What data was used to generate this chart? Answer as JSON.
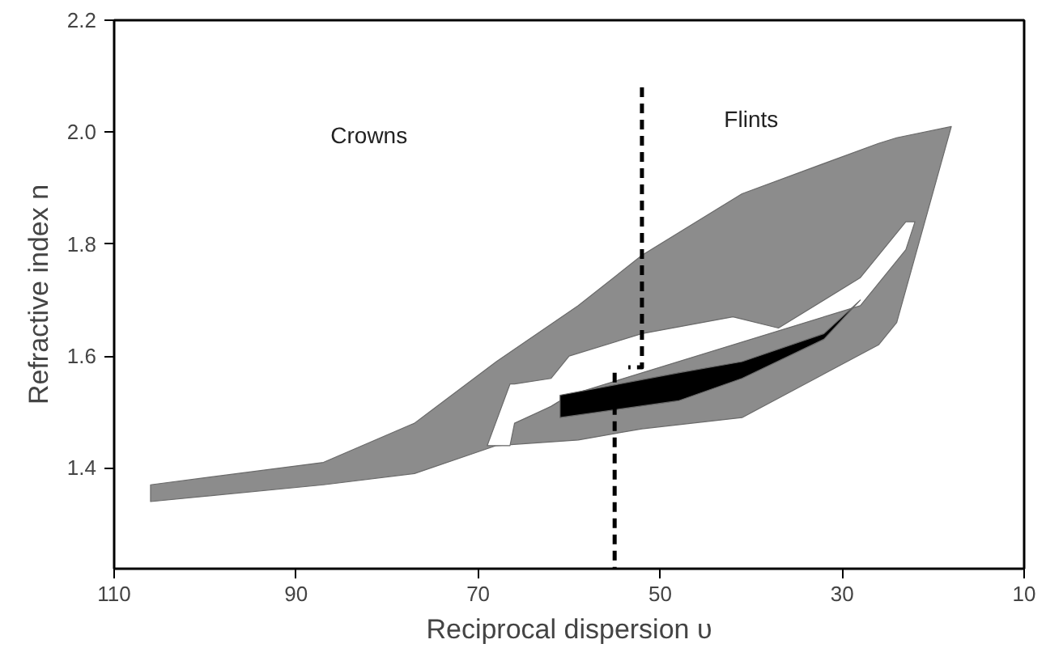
{
  "chart_data": {
    "type": "area",
    "xlabel": "Reciprocal dispersion υ",
    "ylabel": "Refractive index n",
    "xlim": [
      110,
      10
    ],
    "ylim": [
      1.22,
      2.2
    ],
    "xticks": [
      110,
      90,
      70,
      50,
      30,
      10
    ],
    "yticks": [
      1.4,
      1.6,
      1.8,
      {
        "value": 2.0,
        "label": "2.0"
      },
      2.2
    ],
    "grid": false,
    "annotations": [
      "Crowns",
      "Flints"
    ],
    "series": [
      {
        "color": "#8c8c8c",
        "x": [
          106,
          87,
          77,
          68,
          59,
          52,
          41,
          26,
          24,
          18,
          24,
          26,
          41,
          52,
          59,
          68,
          77,
          87,
          106
        ],
        "values": [
          1.37,
          1.41,
          1.48,
          1.59,
          1.69,
          1.78,
          1.89,
          1.98,
          1.99,
          2.01,
          1.66,
          1.62,
          1.49,
          1.47,
          1.45,
          1.44,
          1.39,
          1.37,
          1.34
        ]
      },
      {
        "color": "#ffffff",
        "x": [
          69,
          66.5,
          66,
          62,
          60,
          52,
          42,
          37,
          28,
          23,
          22,
          23,
          28,
          60,
          62,
          66,
          66.5
        ],
        "values": [
          1.44,
          1.55,
          1.55,
          1.56,
          1.6,
          1.64,
          1.67,
          1.65,
          1.74,
          1.84,
          1.84,
          1.79,
          1.69,
          1.53,
          1.51,
          1.48,
          1.44
        ]
      },
      {
        "color": "#000000",
        "x": [
          61,
          48,
          41,
          32,
          28,
          32,
          41,
          48,
          61
        ],
        "values": [
          1.53,
          1.57,
          1.59,
          1.64,
          1.7,
          1.63,
          1.56,
          1.52,
          1.49
        ]
      },
      {
        "type": "line",
        "color": "#000000",
        "line_style": "dashed",
        "x": [
          52,
          52,
          53.5
        ],
        "values": [
          2.08,
          1.58,
          1.58
        ]
      },
      {
        "type": "line",
        "color": "#000000",
        "line_style": "dashed",
        "x": [
          55,
          55
        ],
        "values": [
          1.57,
          1.22
        ]
      }
    ]
  }
}
